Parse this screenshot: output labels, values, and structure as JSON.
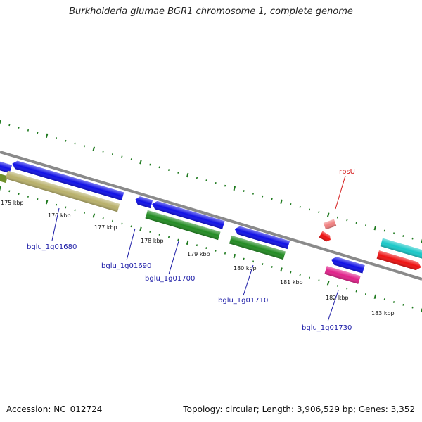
{
  "header": {
    "title": "Burkholderia glumae BGR1 chromosome 1, complete genome"
  },
  "footer": {
    "accession": "Accession: NC_012724",
    "summary": "Topology: circular; Length: 3,906,529 bp; Genes: 3,352"
  },
  "kbp_labels": [
    "175 kbp",
    "176 kbp",
    "177 kbp",
    "178 kbp",
    "179 kbp",
    "180 kbp",
    "181 kbp",
    "182 kbp",
    "183 kbp"
  ],
  "gene_labels": [
    "bglu_1g01680",
    "bglu_1g01690",
    "bglu_1g01700",
    "bglu_1g01710",
    "bglu_1g01730",
    "rpsU"
  ],
  "colors": {
    "backbone": "#888888",
    "tick": "#1f7a1f",
    "label_blue": "#1a1aa6",
    "label_red": "#d31515",
    "gene_blue": "#1010e6",
    "gene_khaki": "#b8b06a",
    "gene_green": "#228b22",
    "gene_olive": "#6f8f2a",
    "gene_pink": "#e0218a",
    "gene_salmon": "#f08080",
    "gene_red": "#ee1111",
    "gene_cyan": "#19c8c8"
  }
}
